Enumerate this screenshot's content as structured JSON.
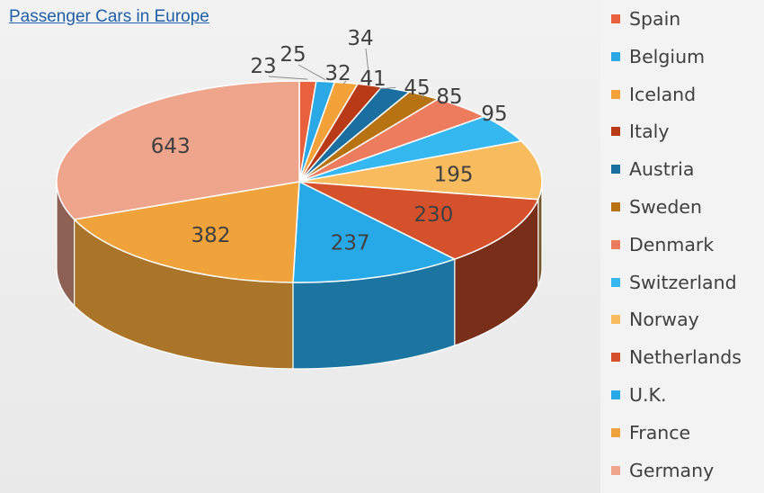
{
  "title": "Passenger Cars in Europe",
  "chart_data": {
    "type": "pie",
    "title": "Passenger Cars in Europe",
    "three_d": true,
    "legend_position": "right",
    "slices": [
      {
        "label": "Spain",
        "value": 23,
        "color": "#e8603c"
      },
      {
        "label": "Belgium",
        "value": 25,
        "color": "#2ba8e6"
      },
      {
        "label": "Iceland",
        "value": 32,
        "color": "#f3a23a"
      },
      {
        "label": "Italy",
        "value": 34,
        "color": "#b83a17"
      },
      {
        "label": "Austria",
        "value": 41,
        "color": "#1a6fa0"
      },
      {
        "label": "Sweden",
        "value": 45,
        "color": "#b77212"
      },
      {
        "label": "Denmark",
        "value": 85,
        "color": "#ed7b5e"
      },
      {
        "label": "Switzerland",
        "value": 95,
        "color": "#35b7f0"
      },
      {
        "label": "Norway",
        "value": 195,
        "color": "#f8bb5e"
      },
      {
        "label": "Netherlands",
        "value": 230,
        "color": "#d4512b"
      },
      {
        "label": "U.K.",
        "value": 237,
        "color": "#27a9e8"
      },
      {
        "label": "France",
        "value": 382,
        "color": "#f0a33a"
      },
      {
        "label": "Germany",
        "value": 643,
        "color": "#efa48c"
      }
    ]
  }
}
